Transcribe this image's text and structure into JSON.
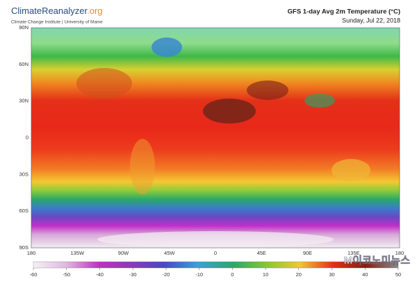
{
  "header": {
    "brand": "ClimateReanalyzer",
    "brand_suffix": ".org",
    "subtitle": "Climate Change Institute | University of Maine",
    "title": "GFS 1-day Avg 2m Temperature (°C)",
    "date": "Sunday, Jul 22, 2018"
  },
  "map": {
    "lat_labels": [
      "90N",
      "60N",
      "30N",
      "0",
      "30S",
      "60S",
      "90S"
    ],
    "lon_labels": [
      "180",
      "135W",
      "90W",
      "45W",
      "0",
      "45E",
      "90E",
      "135E",
      "180"
    ]
  },
  "colorbar": {
    "ticks": [
      -60,
      -50,
      -40,
      -30,
      -20,
      -10,
      0,
      10,
      20,
      30,
      40,
      50
    ]
  },
  "watermark": "M이코노미뉴스"
}
